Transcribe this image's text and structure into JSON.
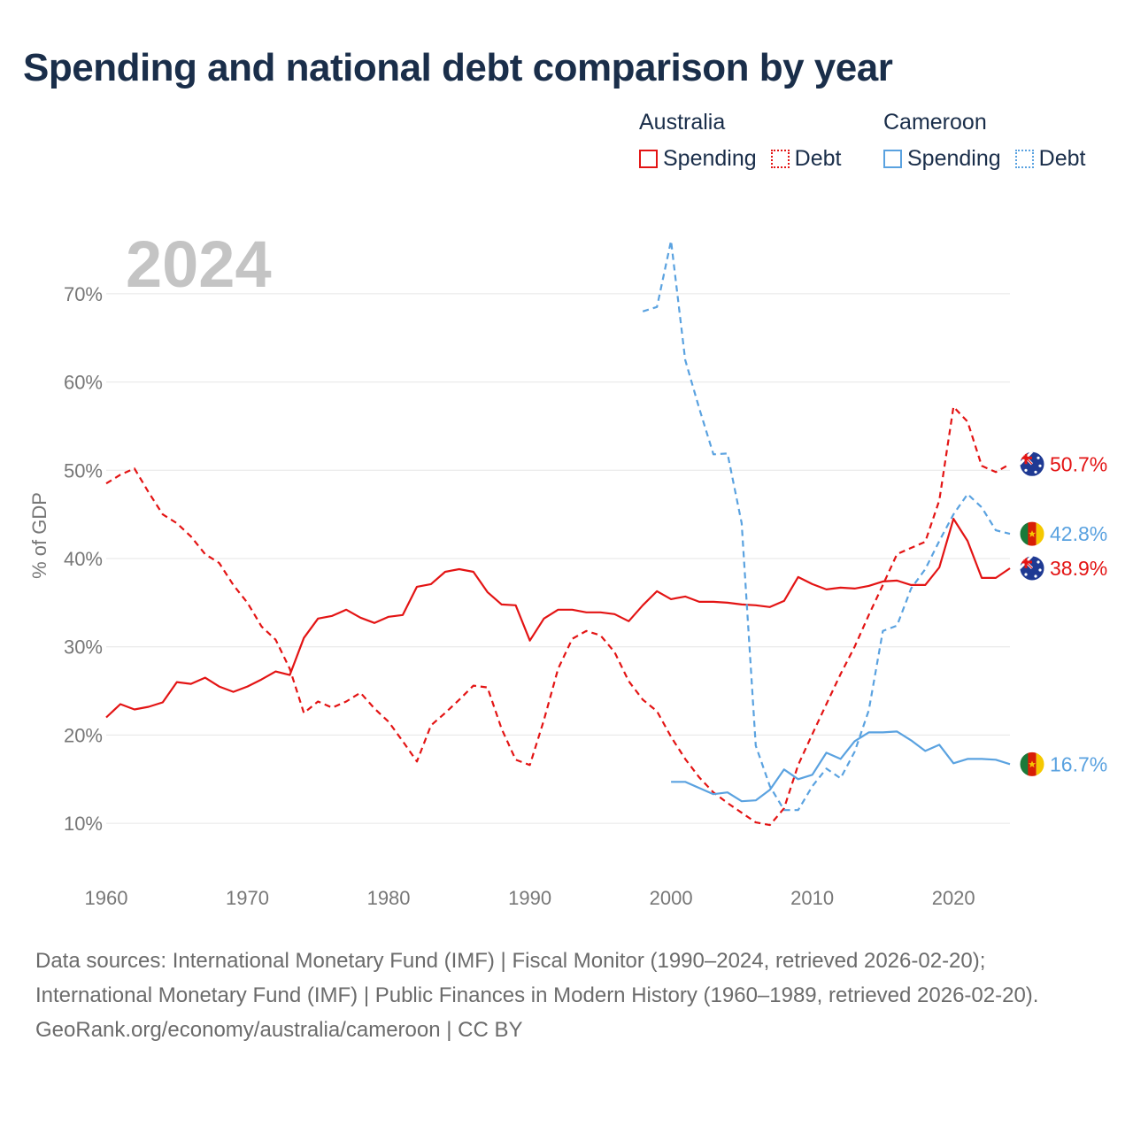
{
  "title": "Spending and national debt comparison by year",
  "legend": {
    "australia": {
      "country": "Australia",
      "spending": "Spending",
      "debt": "Debt"
    },
    "cameroon": {
      "country": "Cameroon",
      "spending": "Spending",
      "debt": "Debt"
    }
  },
  "colors": {
    "australia": "#e31414",
    "cameroon": "#5aa2e0",
    "year": "#c4c4c4",
    "grid": "#e6e6e6",
    "axis_text": "#777777"
  },
  "footer": {
    "sources": "Data sources: International Monetary Fund (IMF) | Fiscal Monitor (1990–2024, retrieved 2026-02-20); International Monetary Fund (IMF) | Public Finances in Modern History (1960–1989, retrieved 2026-02-20).",
    "link": "GeoRank.org/economy/australia/cameroon | CC BY"
  },
  "chart_data": {
    "type": "line",
    "year_label": "2024",
    "ylabel": "% of GDP",
    "xlim": [
      1960,
      2024
    ],
    "ylim": [
      5,
      75
    ],
    "x_ticks": [
      1960,
      1970,
      1980,
      1990,
      2000,
      2010,
      2020
    ],
    "y_ticks": [
      {
        "value": 10,
        "label": "10%"
      },
      {
        "value": 20,
        "label": "20%"
      },
      {
        "value": 30,
        "label": "30%"
      },
      {
        "value": 40,
        "label": "40%"
      },
      {
        "value": 50,
        "label": "50%"
      },
      {
        "value": 60,
        "label": "60%"
      },
      {
        "value": 70,
        "label": "70%"
      }
    ],
    "series": [
      {
        "name": "Australia Spending",
        "country": "australia",
        "style": "solid",
        "end_label": "38.9%",
        "flag": "australia-flag",
        "x": [
          1960,
          1961,
          1962,
          1963,
          1964,
          1965,
          1966,
          1967,
          1968,
          1969,
          1970,
          1971,
          1972,
          1973,
          1974,
          1975,
          1976,
          1977,
          1978,
          1979,
          1980,
          1981,
          1982,
          1983,
          1984,
          1985,
          1986,
          1987,
          1988,
          1989,
          1990,
          1991,
          1992,
          1993,
          1994,
          1995,
          1996,
          1997,
          1998,
          1999,
          2000,
          2001,
          2002,
          2003,
          2004,
          2005,
          2006,
          2007,
          2008,
          2009,
          2010,
          2011,
          2012,
          2013,
          2014,
          2015,
          2016,
          2017,
          2018,
          2019,
          2020,
          2021,
          2022,
          2023,
          2024
        ],
        "values": [
          22.0,
          23.5,
          22.9,
          23.2,
          23.7,
          26.0,
          25.8,
          26.5,
          25.5,
          24.9,
          25.5,
          26.3,
          27.2,
          26.8,
          31.0,
          33.2,
          33.5,
          34.2,
          33.3,
          32.7,
          33.4,
          33.6,
          36.8,
          37.1,
          38.5,
          38.8,
          38.5,
          36.2,
          34.8,
          34.7,
          30.7,
          33.2,
          34.2,
          34.2,
          33.9,
          33.9,
          33.7,
          32.9,
          34.7,
          36.3,
          35.4,
          35.7,
          35.1,
          35.1,
          35.0,
          34.8,
          34.7,
          34.5,
          35.2,
          37.9,
          37.1,
          36.5,
          36.7,
          36.6,
          36.9,
          37.4,
          37.5,
          37.0,
          37.0,
          39.0,
          44.5,
          42.0,
          37.8,
          37.8,
          38.9
        ]
      },
      {
        "name": "Australia Debt",
        "country": "australia",
        "style": "dashed",
        "end_label": "50.7%",
        "flag": "australia-flag",
        "x": [
          1960,
          1961,
          1962,
          1963,
          1964,
          1965,
          1966,
          1967,
          1968,
          1969,
          1970,
          1971,
          1972,
          1973,
          1974,
          1975,
          1976,
          1977,
          1978,
          1979,
          1980,
          1981,
          1982,
          1983,
          1984,
          1985,
          1986,
          1987,
          1988,
          1989,
          1990,
          1991,
          1992,
          1993,
          1994,
          1995,
          1996,
          1997,
          1998,
          1999,
          2000,
          2001,
          2002,
          2003,
          2004,
          2005,
          2006,
          2007,
          2008,
          2009,
          2010,
          2011,
          2012,
          2013,
          2014,
          2015,
          2016,
          2017,
          2018,
          2019,
          2020,
          2021,
          2022,
          2023,
          2024
        ],
        "values": [
          48.5,
          49.5,
          50.2,
          47.5,
          45.0,
          44.0,
          42.5,
          40.5,
          39.5,
          37.0,
          35.0,
          32.3,
          30.8,
          27.5,
          22.5,
          23.8,
          23.1,
          23.8,
          24.8,
          23.0,
          21.5,
          19.3,
          17.0,
          21.1,
          22.5,
          24.0,
          25.6,
          25.4,
          20.7,
          17.2,
          16.6,
          21.7,
          27.5,
          30.9,
          31.8,
          31.3,
          29.4,
          26.1,
          24.0,
          22.7,
          19.8,
          17.3,
          15.2,
          13.5,
          12.3,
          11.2,
          10.1,
          9.8,
          11.7,
          16.6,
          20.1,
          23.5,
          26.9,
          30.0,
          33.6,
          37.0,
          40.5,
          41.2,
          41.9,
          46.6,
          57.2,
          55.5,
          50.5,
          49.8,
          50.7
        ]
      },
      {
        "name": "Cameroon Spending",
        "country": "cameroon",
        "style": "solid",
        "end_label": "16.7%",
        "flag": "cameroon-flag",
        "x": [
          2000,
          2001,
          2002,
          2003,
          2004,
          2005,
          2006,
          2007,
          2008,
          2009,
          2010,
          2011,
          2012,
          2013,
          2014,
          2015,
          2016,
          2017,
          2018,
          2019,
          2020,
          2021,
          2022,
          2023,
          2024
        ],
        "values": [
          14.7,
          14.7,
          14.0,
          13.3,
          13.5,
          12.5,
          12.6,
          13.8,
          16.1,
          15.0,
          15.5,
          18.0,
          17.3,
          19.3,
          20.3,
          20.3,
          20.4,
          19.4,
          18.2,
          18.9,
          16.8,
          17.3,
          17.3,
          17.2,
          16.7
        ]
      },
      {
        "name": "Cameroon Debt",
        "country": "cameroon",
        "style": "dashed",
        "end_label": "42.8%",
        "flag": "cameroon-flag",
        "x": [
          1998,
          1999,
          2000,
          2001,
          2002,
          2003,
          2004,
          2005,
          2006,
          2007,
          2008,
          2009,
          2010,
          2011,
          2012,
          2013,
          2014,
          2015,
          2016,
          2017,
          2018,
          2019,
          2020,
          2021,
          2022,
          2023,
          2024
        ],
        "values": [
          68.0,
          68.5,
          76.0,
          62.5,
          57.0,
          51.8,
          51.9,
          44.0,
          18.8,
          14.2,
          11.5,
          11.5,
          14.2,
          16.2,
          15.1,
          18.1,
          22.8,
          31.8,
          32.4,
          36.6,
          38.8,
          42.0,
          45.0,
          47.3,
          45.8,
          43.2,
          42.8
        ]
      }
    ]
  }
}
